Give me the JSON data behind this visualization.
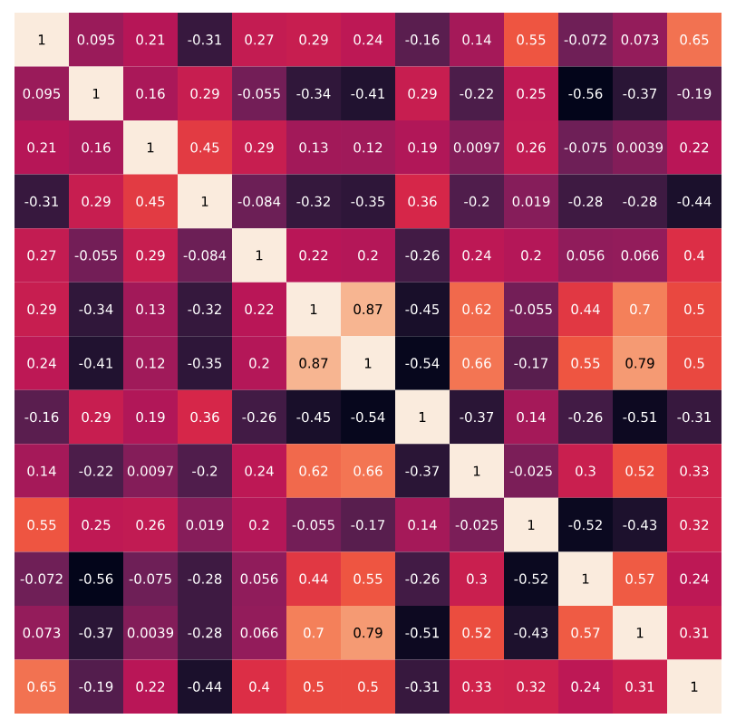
{
  "chart_data": {
    "type": "heatmap",
    "data_labels": true,
    "categories": [
      null,
      null,
      null,
      null,
      null,
      null,
      null,
      null,
      null,
      null,
      null,
      null,
      null
    ],
    "y_categories": [
      null,
      null,
      null,
      null,
      null,
      null,
      null,
      null,
      null,
      null,
      null,
      null,
      null
    ],
    "cells": [
      [
        1,
        0.095,
        0.21,
        -0.31,
        0.27,
        0.29,
        0.24,
        -0.16,
        0.14,
        0.55,
        -0.072,
        0.073,
        0.65
      ],
      [
        0.095,
        1,
        0.16,
        0.29,
        -0.055,
        -0.34,
        -0.41,
        0.29,
        -0.22,
        0.25,
        -0.56,
        -0.37,
        -0.19
      ],
      [
        0.21,
        0.16,
        1,
        0.45,
        0.29,
        0.13,
        0.12,
        0.19,
        0.0097,
        0.26,
        -0.075,
        0.0039,
        0.22
      ],
      [
        -0.31,
        0.29,
        0.45,
        1,
        -0.084,
        -0.32,
        -0.35,
        0.36,
        -0.2,
        0.019,
        -0.28,
        -0.28,
        -0.44
      ],
      [
        0.27,
        -0.055,
        0.29,
        -0.084,
        1,
        0.22,
        0.2,
        -0.26,
        0.24,
        0.2,
        0.056,
        0.066,
        0.4
      ],
      [
        0.29,
        -0.34,
        0.13,
        -0.32,
        0.22,
        1,
        0.87,
        -0.45,
        0.62,
        -0.055,
        0.44,
        0.7,
        0.5
      ],
      [
        0.24,
        -0.41,
        0.12,
        -0.35,
        0.2,
        0.87,
        1,
        -0.54,
        0.66,
        -0.17,
        0.55,
        0.79,
        0.5
      ],
      [
        -0.16,
        0.29,
        0.19,
        0.36,
        -0.26,
        -0.45,
        -0.54,
        1,
        -0.37,
        0.14,
        -0.26,
        -0.51,
        -0.31
      ],
      [
        0.14,
        -0.22,
        0.0097,
        -0.2,
        0.24,
        0.62,
        0.66,
        -0.37,
        1,
        -0.025,
        0.3,
        0.52,
        0.33
      ],
      [
        0.55,
        0.25,
        0.26,
        0.019,
        0.2,
        -0.055,
        -0.17,
        0.14,
        -0.025,
        1,
        -0.52,
        -0.43,
        0.32
      ],
      [
        -0.072,
        -0.56,
        -0.075,
        -0.28,
        0.056,
        0.44,
        0.55,
        -0.26,
        0.3,
        -0.52,
        1,
        0.57,
        0.24
      ],
      [
        0.073,
        -0.37,
        0.0039,
        -0.28,
        0.066,
        0.7,
        0.79,
        -0.51,
        0.52,
        -0.43,
        0.57,
        1,
        0.31
      ],
      [
        0.65,
        -0.19,
        0.22,
        -0.44,
        0.4,
        0.5,
        0.5,
        -0.31,
        0.33,
        0.32,
        0.24,
        0.31,
        1
      ]
    ]
  }
}
